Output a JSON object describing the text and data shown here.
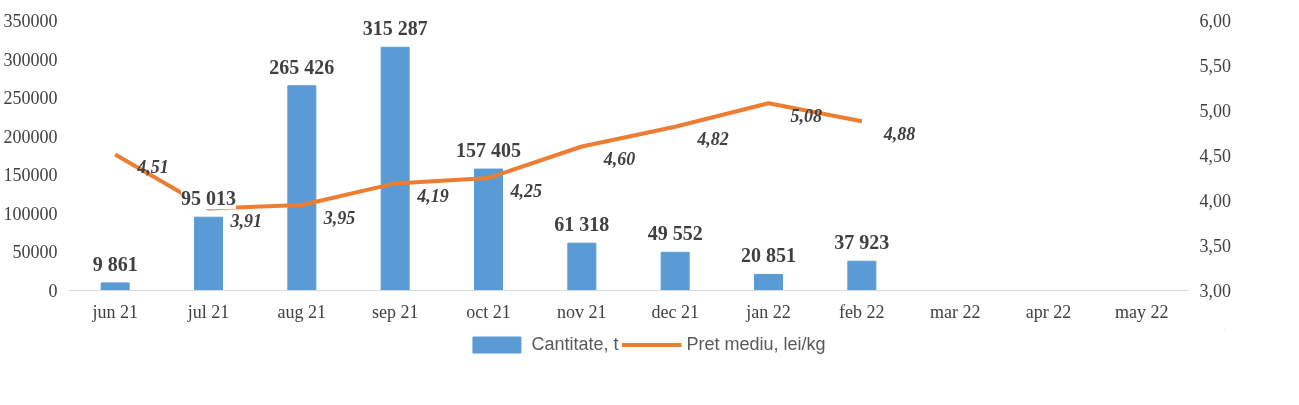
{
  "chart_data": {
    "type": "bar",
    "categories": [
      "jun 21",
      "jul 21",
      "aug 21",
      "sep 21",
      "oct 21",
      "nov 21",
      "dec 21",
      "jan 22",
      "feb 22",
      "mar 22",
      "apr 22",
      "may 22"
    ],
    "series": [
      {
        "name": "Cantitate, t",
        "type": "bar",
        "color": "#5b9bd5",
        "values": [
          9861,
          95013,
          265426,
          315287,
          157405,
          61318,
          49552,
          20851,
          37923,
          null,
          null,
          null
        ],
        "value_labels": [
          "9 861",
          "95 013",
          "265 426",
          "315 287",
          "157 405",
          "61 318",
          "49 552",
          "20 851",
          "37 923",
          null,
          null,
          null
        ]
      },
      {
        "name": "Pret mediu, lei/kg",
        "type": "line",
        "axis": "y2",
        "color": "#ed7d31",
        "values": [
          4.51,
          3.91,
          3.95,
          4.19,
          4.25,
          4.6,
          4.82,
          5.08,
          4.88,
          null,
          null,
          null
        ],
        "value_labels": [
          "4,51",
          "3,91",
          "3,95",
          "4,19",
          "4,25",
          "4,60",
          "4,82",
          "5,08",
          "4,88",
          null,
          null,
          null
        ]
      }
    ],
    "ylim": [
      0,
      350000
    ],
    "yticks": [
      0,
      50000,
      100000,
      150000,
      200000,
      250000,
      300000,
      350000
    ],
    "y2lim": [
      3,
      6
    ],
    "y2ticks": [
      {
        "value": 3,
        "label": "3,00"
      },
      {
        "value": 3.5,
        "label": "3,50"
      },
      {
        "value": 4,
        "label": "4,00"
      },
      {
        "value": 4.5,
        "label": "4,50"
      },
      {
        "value": 5,
        "label": "5,00"
      },
      {
        "value": 5.5,
        "label": "5,50"
      },
      {
        "value": 6,
        "label": "6,00"
      }
    ],
    "grid": false,
    "legend": "bottom"
  }
}
